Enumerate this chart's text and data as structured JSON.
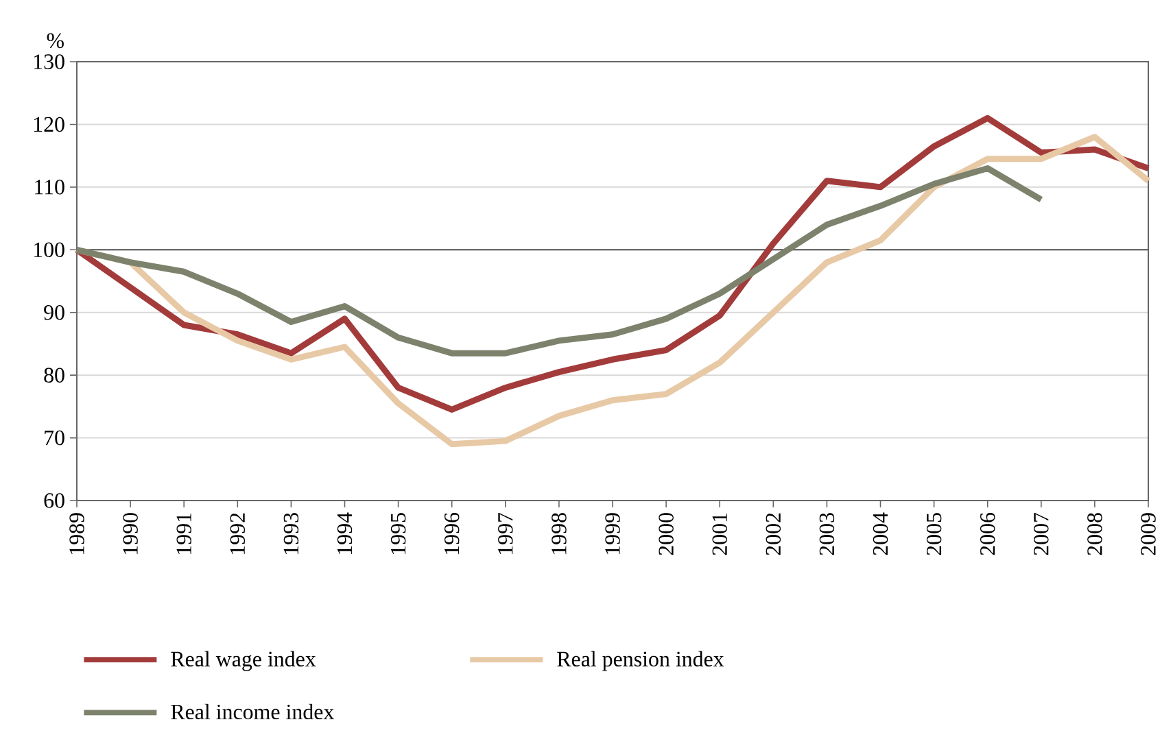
{
  "chart_data": {
    "type": "line",
    "ylabel": "%",
    "x": [
      1989,
      1990,
      1991,
      1992,
      1993,
      1994,
      1995,
      1996,
      1997,
      1998,
      1999,
      2000,
      2001,
      2002,
      2003,
      2004,
      2005,
      2006,
      2007,
      2008,
      2009
    ],
    "xlim": [
      1989,
      2009
    ],
    "xticks": [
      1989,
      1990,
      1991,
      1992,
      1993,
      1994,
      1995,
      1996,
      1997,
      1998,
      1999,
      2000,
      2001,
      2002,
      2003,
      2004,
      2005,
      2006,
      2007,
      2008,
      2009
    ],
    "ylim": [
      60,
      130
    ],
    "yticks": [
      60,
      70,
      80,
      90,
      100,
      110,
      120,
      130
    ],
    "grid": "y",
    "legend": "bottom",
    "line_style": "solid",
    "marker": "none",
    "ref_lines": [
      {
        "axis": "y",
        "value": 100,
        "color": "#555555"
      }
    ],
    "series": [
      {
        "name": "Real wage index",
        "color": "#a33b3b",
        "values": [
          100,
          94,
          88,
          86.5,
          83.5,
          89,
          78,
          74.5,
          78,
          80.5,
          82.5,
          84,
          89.5,
          101,
          111,
          110,
          116.5,
          121,
          115.5,
          116,
          113
        ]
      },
      {
        "name": "Real pension index",
        "color": "#e8c9a6",
        "values": [
          100,
          98,
          90,
          85.5,
          82.5,
          84.5,
          75.5,
          69,
          69.5,
          73.5,
          76,
          77,
          82,
          90,
          98,
          101.5,
          110,
          114.5,
          114.5,
          118,
          111
        ]
      },
      {
        "name": "Real income index",
        "color": "#7d826c",
        "values": [
          100,
          98,
          96.5,
          93,
          88.5,
          91,
          86,
          83.5,
          83.5,
          85.5,
          86.5,
          89,
          93,
          98.5,
          104,
          107,
          110.5,
          113,
          108,
          null,
          null
        ]
      }
    ]
  }
}
